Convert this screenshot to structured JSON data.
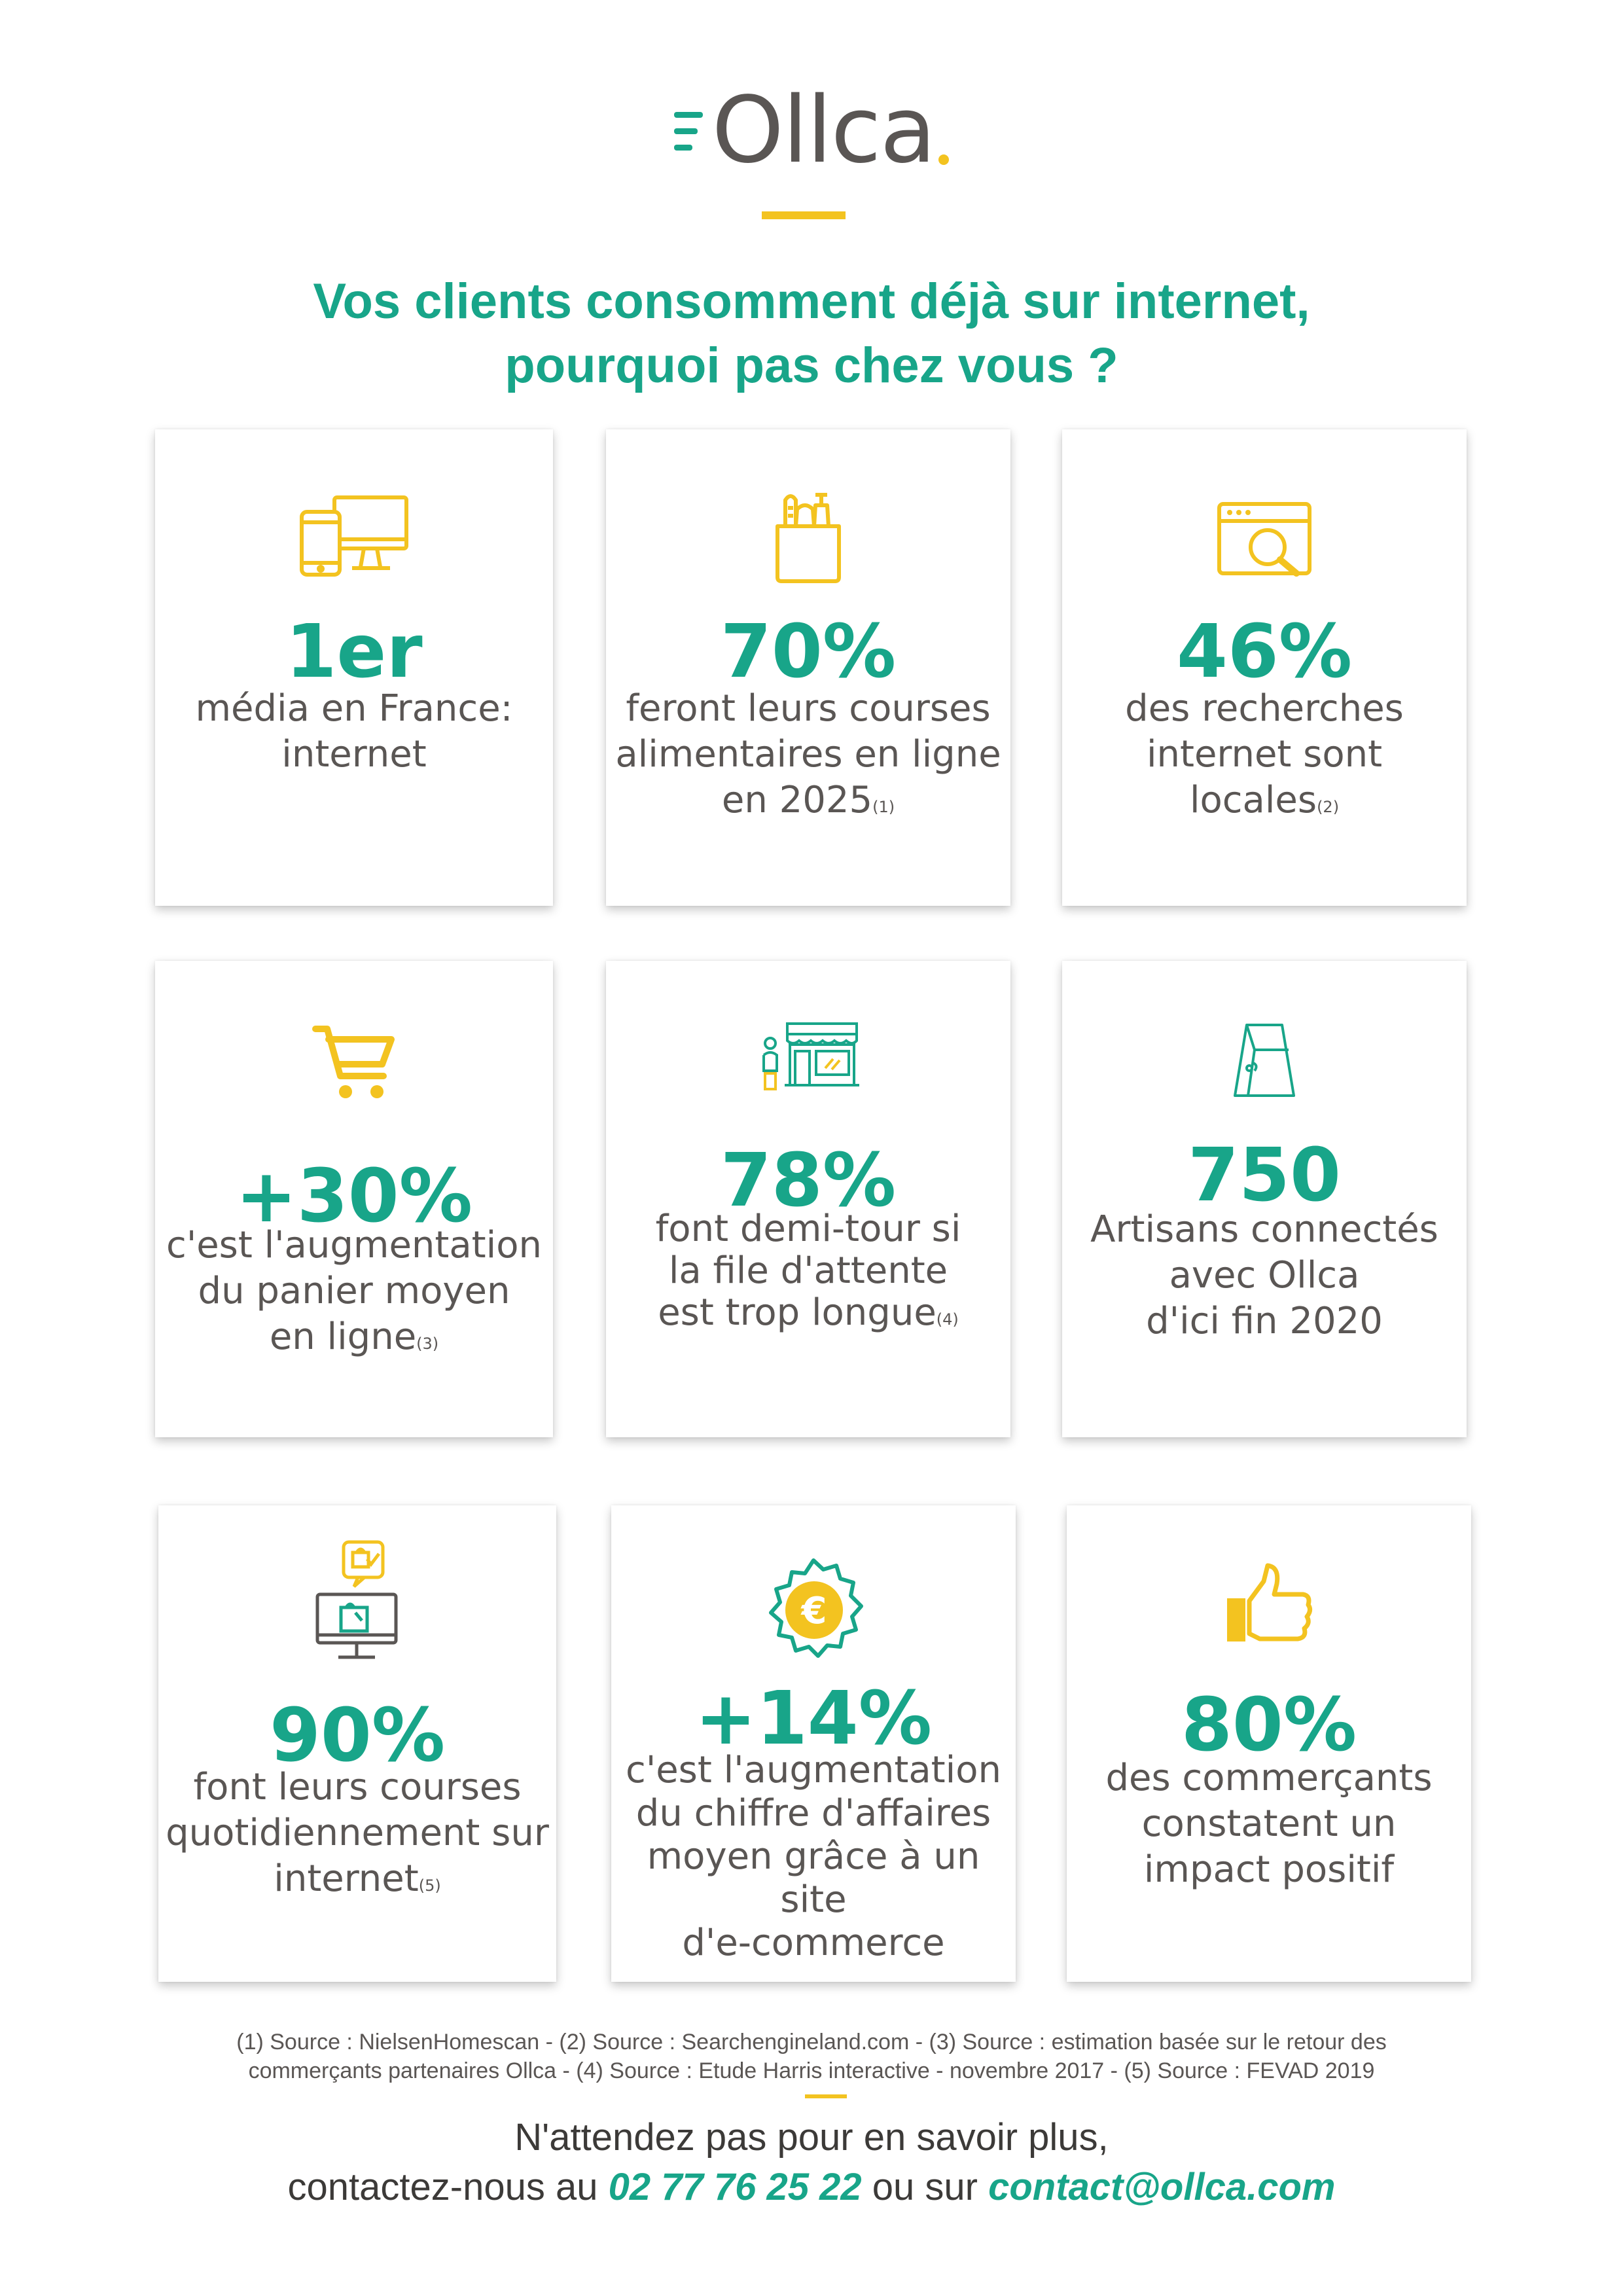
{
  "brand": {
    "name": "Ollca",
    "primary_color": "#18a589",
    "accent_color": "#f3c320",
    "text_color": "#5a5654"
  },
  "headline": {
    "line1": "Vos clients consomment déjà sur internet,",
    "line2": "pourquoi pas chez vous ?"
  },
  "cards": [
    {
      "icon": "devices-icon",
      "stat": "1er",
      "lines": [
        "média en France:",
        "internet"
      ],
      "ref": ""
    },
    {
      "icon": "grocery-bag-icon",
      "stat": "70%",
      "lines": [
        "feront leurs courses",
        "alimentaires en ligne",
        "en 2025"
      ],
      "ref": "(1)"
    },
    {
      "icon": "browser-search-icon",
      "stat": "46%",
      "lines": [
        "des recherches",
        "internet sont",
        "locales"
      ],
      "ref": "(2)"
    },
    {
      "icon": "shopping-cart-icon",
      "stat": "+30%",
      "lines": [
        "c'est l'augmentation",
        "du panier moyen",
        "en ligne"
      ],
      "ref": "(3)"
    },
    {
      "icon": "storefront-icon",
      "stat": "78%",
      "lines": [
        "font demi-tour si",
        "la file d'attente",
        "est trop longue"
      ],
      "ref": "(4)"
    },
    {
      "icon": "paper-bag-icon",
      "stat": "750",
      "lines": [
        "Artisans connectés",
        "avec Ollca",
        "d'ici fin 2020"
      ],
      "ref": ""
    },
    {
      "icon": "online-shopping-icon",
      "stat": "90%",
      "lines": [
        "font leurs courses",
        "quotidiennement sur",
        "internet"
      ],
      "ref": "(5)"
    },
    {
      "icon": "euro-badge-icon",
      "stat": "+14%",
      "lines": [
        "c'est l'augmentation",
        "du chiffre d'affaires",
        "moyen grâce à un site",
        "d'e-commerce"
      ],
      "ref": ""
    },
    {
      "icon": "thumbs-up-icon",
      "stat": "80%",
      "lines": [
        "des commerçants",
        "constatent un",
        "impact positif"
      ],
      "ref": ""
    }
  ],
  "footnote": {
    "line1": "(1) Source : NielsenHomescan - (2) Source : Searchengineland.com - (3) Source : estimation basée sur le retour des",
    "line2": "commerçants partenaires Ollca - (4) Source : Etude Harris interactive  - novembre 2017 - (5) Source : FEVAD 2019"
  },
  "cta": {
    "line1": "N'attendez pas pour en savoir plus,",
    "prefix": "contactez-nous au ",
    "phone": "02 77 76 25 22",
    "middle": " ou sur ",
    "email": "contact@ollca.com"
  }
}
